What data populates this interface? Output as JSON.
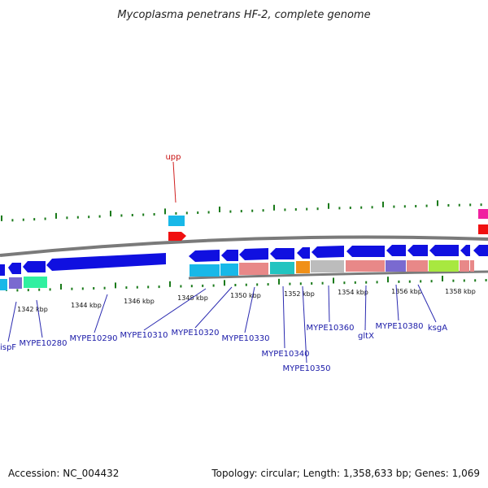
{
  "title": "Mycoplasma penetrans HF-2, complete genome",
  "footer": {
    "accession": "Accession: NC_004432",
    "summary": "Topology: circular; Length: 1,358,633 bp; Genes: 1,069"
  },
  "scale_labels": [
    "1342 kbp",
    "1344 kbp",
    "1346 kbp",
    "1348 kbp",
    "1350 kbp",
    "1352 kbp",
    "1354 kbp",
    "1356 kbp",
    "1358 kbp"
  ],
  "gene_labels": {
    "upp": "upp",
    "ispF": "ispF",
    "MYPE10280": "MYPE10280",
    "MYPE10290": "MYPE10290",
    "MYPE10310": "MYPE10310",
    "MYPE10320": "MYPE10320",
    "MYPE10330": "MYPE10330",
    "MYPE10340": "MYPE10340",
    "MYPE10350": "MYPE10350",
    "MYPE10360": "MYPE10360",
    "gltX": "gltX",
    "MYPE10380": "MYPE10380",
    "ksgA": "ksgA"
  },
  "colors": {
    "cds": "#1010e0",
    "label_blue": "#1a1aa8",
    "label_red": "#c81010",
    "backbone": "#7a7a7a",
    "tick": "#1a7a1a",
    "connector_blue": "#2a2ab0",
    "connector_red": "#d02020",
    "cog_cyan": "#18b8e8",
    "cog_salmon": "#e88888",
    "cog_teal": "#22c4c0",
    "cog_orange": "#f09018",
    "cog_grey": "#bcbcbc",
    "cog_purple": "#7a6ad0",
    "cog_lime": "#a8e840",
    "cog_mint": "#30f0a0",
    "cog_red": "#f01010",
    "cog_magenta": "#f020a0"
  }
}
